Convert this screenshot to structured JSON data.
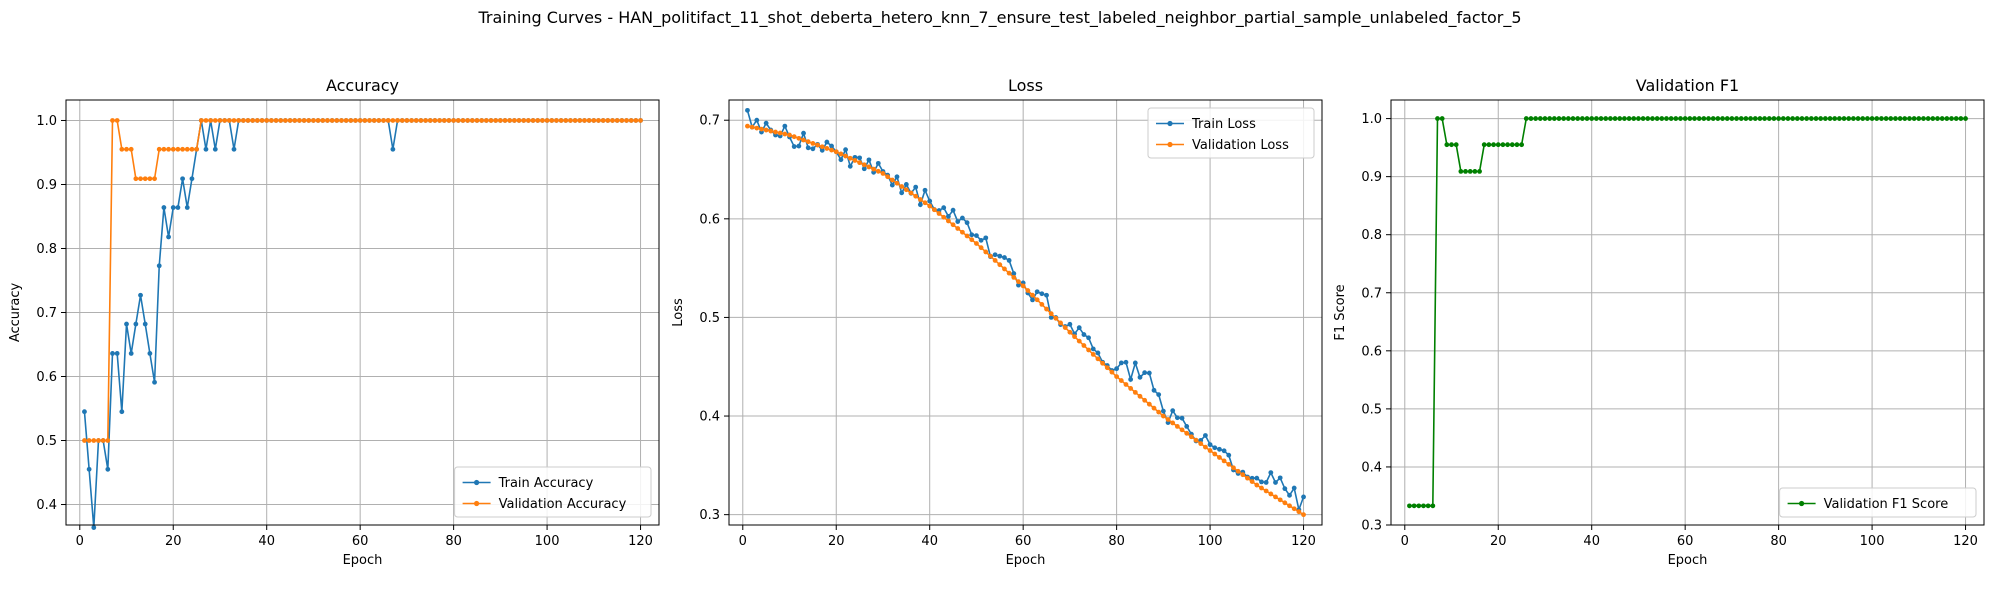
{
  "figure": {
    "title": "Training Curves - HAN_politifact_11_shot_deberta_hetero_knn_7_ensure_test_labeled_neighbor_partial_sample_unlabeled_factor_5"
  },
  "colors": {
    "blue": "#1f77b4",
    "orange": "#ff7f0e",
    "green": "#008000",
    "grid": "#b0b0b0"
  },
  "chart_data": [
    {
      "type": "line",
      "title": "Accuracy",
      "xlabel": "Epoch",
      "ylabel": "Accuracy",
      "xlim": [
        -2.95,
        123.95
      ],
      "ylim": [
        0.368,
        1.032
      ],
      "xticks": [
        0,
        20,
        40,
        60,
        80,
        100,
        120
      ],
      "yticks": [
        0.4,
        0.5,
        0.6,
        0.7,
        0.8,
        0.9,
        1.0
      ],
      "ytick_labels": [
        "0.4",
        "0.5",
        "0.6",
        "0.7",
        "0.8",
        "0.9",
        "1.0"
      ],
      "grid": true,
      "legend_position": "lower-right",
      "series": [
        {
          "name": "Train Accuracy",
          "color": "#1f77b4",
          "points": [
            [
              1,
              0.545
            ],
            [
              2,
              0.455
            ],
            [
              3,
              0.364
            ],
            [
              4,
              0.5
            ],
            [
              5,
              0.5
            ],
            [
              6,
              0.455
            ],
            [
              7,
              0.636
            ],
            [
              8,
              0.636
            ],
            [
              9,
              0.545
            ],
            [
              10,
              0.682
            ],
            [
              11,
              0.636
            ],
            [
              12,
              0.682
            ],
            [
              13,
              0.727
            ],
            [
              14,
              0.682
            ],
            [
              15,
              0.636
            ],
            [
              16,
              0.591
            ],
            [
              17,
              0.773
            ],
            [
              18,
              0.864
            ],
            [
              19,
              0.818
            ],
            [
              20,
              0.864
            ],
            [
              21,
              0.864
            ],
            [
              22,
              0.909
            ],
            [
              23,
              0.864
            ],
            [
              24,
              0.909
            ],
            [
              25,
              0.955
            ],
            [
              26,
              1.0
            ],
            [
              27,
              0.955
            ],
            [
              28,
              1.0
            ],
            [
              29,
              0.955
            ],
            [
              30,
              1.0
            ],
            [
              31,
              1.0
            ],
            [
              32,
              1.0
            ],
            [
              33,
              0.955
            ],
            [
              34,
              1.0
            ],
            [
              66,
              1.0
            ],
            [
              67,
              0.955
            ],
            [
              68,
              1.0
            ],
            [
              120,
              1.0
            ]
          ],
          "fill_value_after": 1.0
        },
        {
          "name": "Validation Accuracy",
          "color": "#ff7f0e",
          "points": [
            [
              1,
              0.5
            ],
            [
              2,
              0.5
            ],
            [
              3,
              0.5
            ],
            [
              4,
              0.5
            ],
            [
              5,
              0.5
            ],
            [
              6,
              0.5
            ],
            [
              7,
              1.0
            ],
            [
              8,
              1.0
            ],
            [
              9,
              0.955
            ],
            [
              10,
              0.955
            ],
            [
              11,
              0.955
            ],
            [
              12,
              0.909
            ],
            [
              13,
              0.909
            ],
            [
              14,
              0.909
            ],
            [
              15,
              0.909
            ],
            [
              16,
              0.909
            ],
            [
              17,
              0.955
            ],
            [
              18,
              0.955
            ],
            [
              19,
              0.955
            ],
            [
              20,
              0.955
            ],
            [
              21,
              0.955
            ],
            [
              22,
              0.955
            ],
            [
              23,
              0.955
            ],
            [
              24,
              0.955
            ],
            [
              25,
              0.955
            ],
            [
              26,
              1.0
            ],
            [
              120,
              1.0
            ]
          ],
          "fill_value_after": 1.0
        }
      ]
    },
    {
      "type": "line",
      "title": "Loss",
      "xlabel": "Epoch",
      "ylabel": "Loss",
      "xlim": [
        -2.95,
        123.95
      ],
      "ylim": [
        0.2895,
        0.7205
      ],
      "xticks": [
        0,
        20,
        40,
        60,
        80,
        100,
        120
      ],
      "yticks": [
        0.3,
        0.4,
        0.5,
        0.6,
        0.7
      ],
      "ytick_labels": [
        "0.3",
        "0.4",
        "0.5",
        "0.6",
        "0.7"
      ],
      "grid": true,
      "legend_position": "upper-right",
      "series": [
        {
          "name": "Train Loss",
          "color": "#1f77b4",
          "shape": "noisy",
          "points": [
            [
              1,
              0.71
            ],
            [
              2,
              0.693
            ],
            [
              3,
              0.7
            ],
            [
              4,
              0.688
            ],
            [
              5,
              0.697
            ],
            [
              6,
              0.69
            ],
            [
              7,
              0.685
            ],
            [
              8,
              0.684
            ],
            [
              9,
              0.694
            ],
            [
              10,
              0.683
            ],
            [
              20,
              0.668
            ],
            [
              30,
              0.648
            ],
            [
              40,
              0.618
            ],
            [
              50,
              0.583
            ],
            [
              60,
              0.535
            ],
            [
              70,
              0.493
            ],
            [
              80,
              0.448
            ],
            [
              86,
              0.444
            ],
            [
              90,
              0.405
            ],
            [
              100,
              0.371
            ],
            [
              110,
              0.337
            ],
            [
              118,
              0.327
            ],
            [
              119,
              0.305
            ],
            [
              120,
              0.318
            ]
          ]
        },
        {
          "name": "Validation Loss",
          "color": "#ff7f0e",
          "shape": "smooth",
          "points": [
            [
              1,
              0.694
            ],
            [
              10,
              0.685
            ],
            [
              20,
              0.668
            ],
            [
              30,
              0.646
            ],
            [
              40,
              0.613
            ],
            [
              50,
              0.575
            ],
            [
              60,
              0.532
            ],
            [
              70,
              0.485
            ],
            [
              80,
              0.44
            ],
            [
              90,
              0.4
            ],
            [
              100,
              0.365
            ],
            [
              110,
              0.33
            ],
            [
              120,
              0.3
            ]
          ]
        }
      ]
    },
    {
      "type": "line",
      "title": "Validation F1",
      "xlabel": "Epoch",
      "ylabel": "F1 Score",
      "xlim": [
        -2.95,
        123.95
      ],
      "ylim": [
        0.3,
        1.032
      ],
      "xticks": [
        0,
        20,
        40,
        60,
        80,
        100,
        120
      ],
      "yticks": [
        0.3,
        0.4,
        0.5,
        0.6,
        0.7,
        0.8,
        0.9,
        1.0
      ],
      "ytick_labels": [
        "0.3",
        "0.4",
        "0.5",
        "0.6",
        "0.7",
        "0.8",
        "0.9",
        "1.0"
      ],
      "grid": true,
      "legend_position": "lower-right",
      "series": [
        {
          "name": "Validation F1 Score",
          "color": "#008000",
          "points": [
            [
              1,
              0.333
            ],
            [
              2,
              0.333
            ],
            [
              3,
              0.333
            ],
            [
              4,
              0.333
            ],
            [
              5,
              0.333
            ],
            [
              6,
              0.333
            ],
            [
              7,
              1.0
            ],
            [
              8,
              1.0
            ],
            [
              9,
              0.955
            ],
            [
              10,
              0.955
            ],
            [
              11,
              0.955
            ],
            [
              12,
              0.909
            ],
            [
              13,
              0.909
            ],
            [
              14,
              0.909
            ],
            [
              15,
              0.909
            ],
            [
              16,
              0.909
            ],
            [
              17,
              0.955
            ],
            [
              18,
              0.955
            ],
            [
              19,
              0.955
            ],
            [
              20,
              0.955
            ],
            [
              21,
              0.955
            ],
            [
              22,
              0.955
            ],
            [
              23,
              0.955
            ],
            [
              24,
              0.955
            ],
            [
              25,
              0.955
            ],
            [
              26,
              1.0
            ],
            [
              120,
              1.0
            ]
          ],
          "fill_value_after": 1.0
        }
      ]
    }
  ]
}
